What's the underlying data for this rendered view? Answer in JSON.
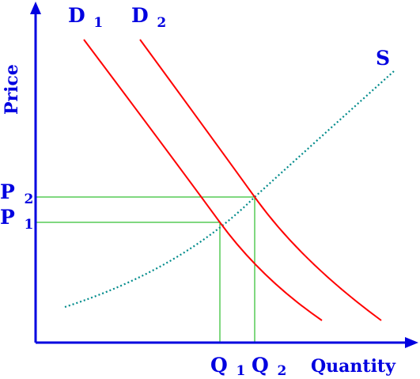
{
  "diagram": {
    "y_axis_label": "Price",
    "x_axis_label": "Quantity",
    "supply_label": "S",
    "demand_1": {
      "letter": "D",
      "subscript": "1"
    },
    "demand_2": {
      "letter": "D",
      "subscript": "2"
    },
    "price_1": {
      "letter": "P",
      "subscript": "1"
    },
    "price_2": {
      "letter": "P",
      "subscript": "2"
    },
    "quantity_1": {
      "letter": "Q",
      "subscript": "1"
    },
    "quantity_2": {
      "letter": "Q",
      "subscript": "2"
    },
    "colors": {
      "axes": "#0000e0",
      "labels": "#0000e0",
      "demand": "#ff0000",
      "supply": "#008b8b",
      "guides": "#00b000"
    }
  }
}
